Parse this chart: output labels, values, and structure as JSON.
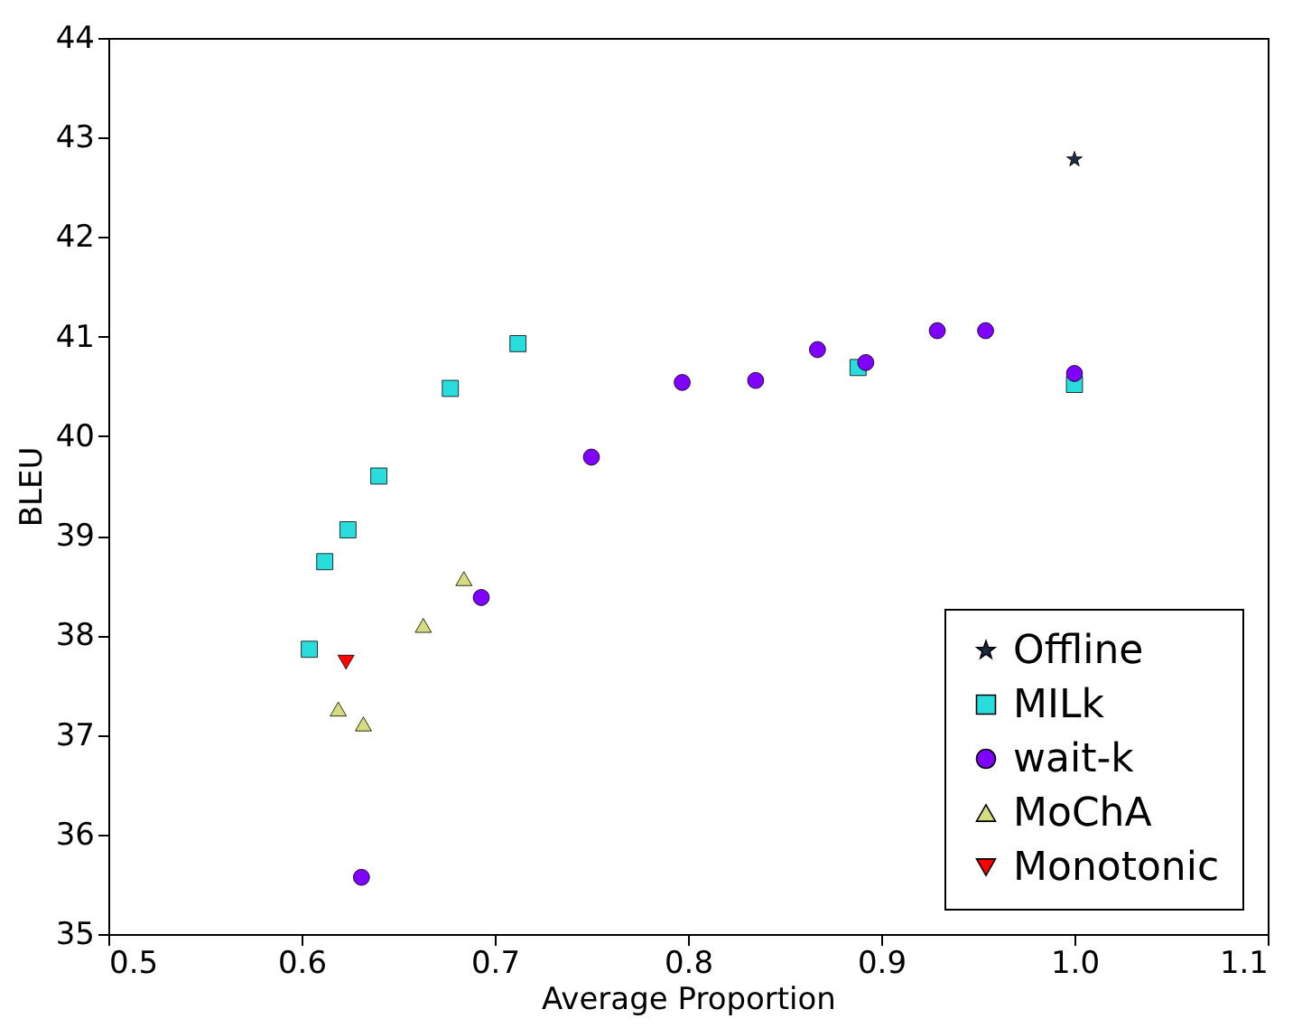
{
  "chart_data": {
    "type": "scatter",
    "xlabel": "Average Proportion",
    "ylabel": "BLEU",
    "xlim": [
      0.5,
      1.1
    ],
    "xticks": [
      {
        "value": 0.5,
        "label": "0.5"
      },
      {
        "value": 0.6,
        "label": "0.6"
      },
      {
        "value": 0.7,
        "label": "0.7"
      },
      {
        "value": 0.8,
        "label": "0.8"
      },
      {
        "value": 0.9,
        "label": "0.9"
      },
      {
        "value": 1.0,
        "label": "1.0"
      },
      {
        "value": 1.1,
        "label": "1.1"
      }
    ],
    "ylim": [
      35,
      44
    ],
    "yticks": [
      35,
      36,
      37,
      38,
      39,
      40,
      41,
      42,
      43,
      44
    ],
    "grid": false,
    "legend": "bottom right",
    "series": [
      {
        "name": "Offline",
        "color": "#1f2a44",
        "marker": "star",
        "x": [
          1.0
        ],
        "values": [
          42.78
        ]
      },
      {
        "name": "MILk",
        "color": "#2adddd",
        "marker": "square",
        "x": [
          0.604,
          0.612,
          0.624,
          0.64,
          0.677,
          0.712,
          0.888,
          1.0
        ],
        "values": [
          37.86,
          38.74,
          39.06,
          39.6,
          40.48,
          40.93,
          40.69,
          40.52
        ]
      },
      {
        "name": "wait-k",
        "color": "#7f00ff",
        "marker": "circle",
        "x": [
          0.631,
          0.693,
          0.75,
          0.797,
          0.835,
          0.867,
          0.892,
          0.929,
          0.954,
          1.0
        ],
        "values": [
          35.57,
          38.38,
          39.79,
          40.54,
          40.56,
          40.87,
          40.74,
          41.06,
          41.06,
          40.63
        ]
      },
      {
        "name": "MoChA",
        "color": "#d4dc7f",
        "marker": "triangle",
        "x": [
          0.619,
          0.632,
          0.663,
          0.684
        ],
        "values": [
          37.26,
          37.11,
          38.1,
          38.57
        ]
      },
      {
        "name": "Monotonic",
        "color": "#ff0000",
        "marker": "triangle-down",
        "x": [
          0.623
        ],
        "values": [
          37.73
        ]
      }
    ]
  }
}
